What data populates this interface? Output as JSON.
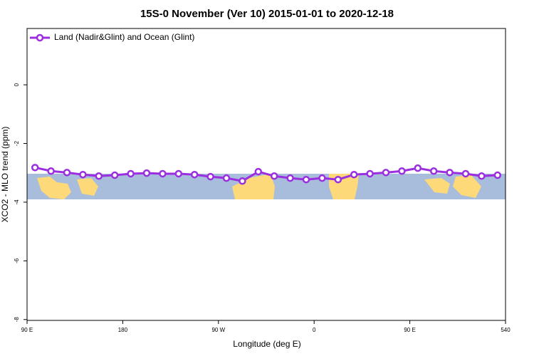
{
  "chart_data": {
    "type": "line",
    "title": "15S-0 November (Ver 10)   2015-01-01 to 2020-12-18",
    "xlabel": "Longitude (deg E)",
    "ylabel": "XCO2 - MLO trend (ppm)",
    "x": [
      97.5,
      112.5,
      127.5,
      142.5,
      157.5,
      172.5,
      187.5,
      202.5,
      217.5,
      232.5,
      247.5,
      262.5,
      277.5,
      292.5,
      307.5,
      322.5,
      337.5,
      352.5,
      367.5,
      382.5,
      397.5,
      412.5,
      427.5,
      442.5,
      457.5,
      472.5,
      487.5,
      502.5,
      517.5,
      532.5
    ],
    "series": [
      {
        "name": "Land (Nadir&Glint) and Ocean (Glint)",
        "color": "#9b2fe0",
        "values": [
          -2.82,
          -2.94,
          -2.99,
          -3.06,
          -3.11,
          -3.08,
          -3.03,
          -3.01,
          -3.03,
          -3.03,
          -3.06,
          -3.13,
          -3.18,
          -3.28,
          -2.96,
          -3.11,
          -3.18,
          -3.23,
          -3.18,
          -3.23,
          -3.06,
          -3.03,
          -2.99,
          -2.94,
          -2.84,
          -2.94,
          -2.99,
          -3.03,
          -3.11,
          -3.08
        ]
      }
    ],
    "xlim": [
      90,
      540
    ],
    "xticks": [
      {
        "value": 90,
        "label": "90 E"
      },
      180,
      {
        "value": 270,
        "label": "90 W"
      },
      {
        "value": 360,
        "label": "0"
      },
      {
        "value": 450,
        "label": "90 E"
      },
      540
    ],
    "ylim": [
      -8.03,
      1.92
    ],
    "yticks": [
      0,
      -2,
      -4,
      -6,
      -8
    ],
    "legend": "top-left"
  }
}
